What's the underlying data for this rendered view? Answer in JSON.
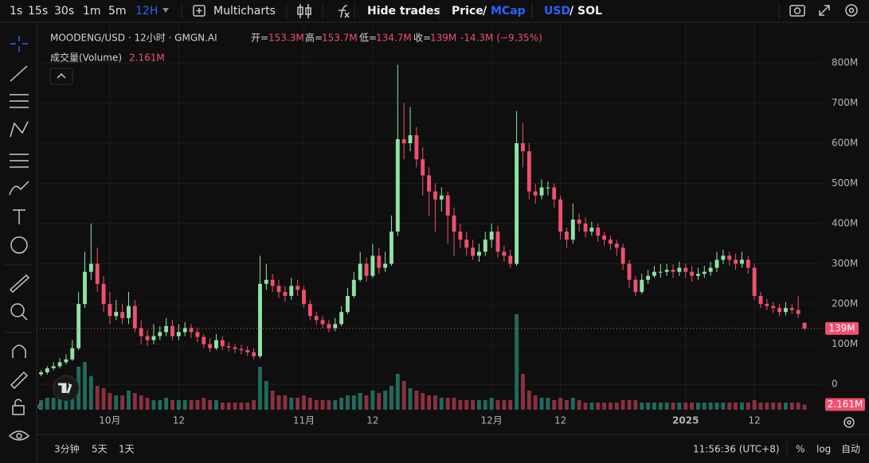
{
  "toolbar": {
    "intervals": [
      "1s",
      "15s",
      "30s",
      "1m",
      "5m",
      "12H"
    ],
    "multicharts": "Multicharts",
    "hide_trades": "Hide trades",
    "price": "Price",
    "slash_1": "/",
    "mcap": "MCap",
    "usd": "USD",
    "slash_2": "/",
    "sol": "SOL"
  },
  "chart_data": {
    "type": "candlestick",
    "title": "MOODENG/USD · 12小时 · GMGN.AI",
    "ohlc_legend": [
      {
        "label": "开=",
        "value": "153.3M"
      },
      {
        "label": "高=",
        "value": "153.7M"
      },
      {
        "label": "低=",
        "value": "134.7M"
      },
      {
        "label": "收=",
        "value": "139M"
      }
    ],
    "change": "-14.3M (−9.35%)",
    "volume_title": "成交量(Volume)",
    "volume_value": "2.161M",
    "last_price_label": "139M",
    "last_volume_label": "2.161M",
    "up_color": "#8ee3a6",
    "down_color": "#f0506e",
    "volume_up_color": "#1f6b5c",
    "volume_down_color": "#8b3040",
    "open": [
      25,
      30,
      40,
      45,
      55,
      62,
      90,
      200,
      280,
      300,
      250,
      200,
      170,
      180,
      165,
      195,
      140,
      120,
      110,
      120,
      130,
      145,
      120,
      130,
      140,
      130,
      118,
      100,
      90,
      110,
      95,
      92,
      88,
      85,
      80,
      70,
      250,
      260,
      245,
      230,
      220,
      245,
      235,
      200,
      170,
      160,
      150,
      140,
      150,
      180,
      220,
      260,
      300,
      270,
      320,
      290,
      300,
      380,
      610,
      600,
      620,
      560,
      520,
      480,
      460,
      470,
      420,
      380,
      360,
      340,
      320,
      330,
      360,
      380,
      330,
      320,
      300,
      600,
      580,
      480,
      470,
      490,
      490,
      460,
      380,
      360,
      410,
      400,
      380,
      390,
      370,
      360,
      350,
      340,
      300,
      260,
      230,
      260,
      270,
      280,
      280,
      285,
      280,
      290,
      280,
      270,
      275,
      280,
      290,
      310,
      320,
      310,
      300,
      310,
      290,
      220,
      200,
      195,
      190,
      180,
      190,
      185,
      153.3
    ],
    "high": [
      35,
      45,
      55,
      65,
      75,
      110,
      230,
      330,
      400,
      340,
      270,
      230,
      210,
      200,
      230,
      210,
      160,
      135,
      150,
      145,
      165,
      160,
      150,
      155,
      150,
      140,
      125,
      115,
      125,
      120,
      105,
      100,
      98,
      95,
      90,
      320,
      300,
      275,
      260,
      245,
      265,
      260,
      245,
      210,
      180,
      170,
      160,
      165,
      195,
      240,
      280,
      330,
      315,
      350,
      340,
      330,
      420,
      795,
      700,
      690,
      640,
      590,
      540,
      500,
      490,
      480,
      440,
      400,
      380,
      360,
      350,
      380,
      400,
      395,
      345,
      335,
      680,
      650,
      600,
      500,
      510,
      505,
      500,
      470,
      390,
      450,
      425,
      415,
      405,
      400,
      380,
      370,
      360,
      350,
      310,
      270,
      275,
      285,
      295,
      300,
      300,
      298,
      305,
      300,
      295,
      290,
      295,
      305,
      330,
      335,
      330,
      325,
      330,
      320,
      300,
      230,
      212,
      205,
      200,
      205,
      200,
      220,
      153.7
    ],
    "low": [
      20,
      25,
      35,
      40,
      50,
      58,
      85,
      190,
      260,
      230,
      180,
      150,
      160,
      150,
      150,
      130,
      100,
      95,
      100,
      110,
      120,
      110,
      110,
      120,
      115,
      105,
      90,
      80,
      85,
      85,
      82,
      78,
      75,
      70,
      62,
      65,
      235,
      230,
      215,
      205,
      210,
      220,
      190,
      160,
      148,
      140,
      130,
      132,
      145,
      175,
      215,
      255,
      255,
      265,
      275,
      280,
      295,
      370,
      560,
      580,
      540,
      470,
      420,
      380,
      430,
      350,
      320,
      340,
      320,
      310,
      305,
      320,
      340,
      315,
      305,
      290,
      295,
      540,
      460,
      450,
      460,
      470,
      440,
      360,
      340,
      350,
      380,
      365,
      370,
      355,
      345,
      335,
      320,
      285,
      240,
      220,
      225,
      250,
      265,
      265,
      270,
      265,
      270,
      265,
      255,
      260,
      265,
      270,
      280,
      300,
      295,
      285,
      290,
      275,
      210,
      190,
      185,
      178,
      170,
      172,
      175,
      165,
      134.7
    ],
    "close": [
      30,
      40,
      45,
      55,
      62,
      90,
      200,
      280,
      300,
      250,
      200,
      170,
      180,
      165,
      195,
      140,
      120,
      110,
      120,
      130,
      145,
      120,
      130,
      140,
      130,
      118,
      100,
      90,
      110,
      95,
      92,
      88,
      85,
      80,
      70,
      250,
      260,
      245,
      230,
      220,
      245,
      235,
      200,
      170,
      160,
      150,
      140,
      150,
      180,
      220,
      260,
      300,
      270,
      320,
      290,
      300,
      380,
      610,
      600,
      620,
      560,
      520,
      480,
      460,
      470,
      420,
      380,
      360,
      340,
      320,
      330,
      360,
      380,
      330,
      320,
      300,
      600,
      580,
      480,
      470,
      490,
      490,
      460,
      380,
      360,
      410,
      400,
      380,
      390,
      370,
      360,
      350,
      340,
      300,
      260,
      230,
      260,
      270,
      280,
      280,
      285,
      280,
      290,
      280,
      270,
      275,
      280,
      290,
      310,
      320,
      310,
      300,
      310,
      290,
      220,
      200,
      195,
      190,
      180,
      190,
      185,
      175,
      139
    ],
    "volume": [
      4,
      5,
      5,
      6,
      7,
      12,
      18,
      20,
      14,
      10,
      9,
      7,
      6,
      6,
      8,
      7,
      6,
      5,
      4,
      4,
      5,
      4,
      4,
      4,
      4,
      4,
      5,
      4,
      4,
      3,
      3,
      3,
      3,
      3,
      4,
      18,
      12,
      8,
      6,
      6,
      5,
      5,
      6,
      5,
      4,
      4,
      4,
      4,
      5,
      6,
      6,
      7,
      6,
      8,
      7,
      8,
      10,
      15,
      12,
      9,
      8,
      7,
      6,
      6,
      5,
      5,
      5,
      4,
      4,
      4,
      4,
      4,
      5,
      4,
      4,
      4,
      40,
      15,
      8,
      6,
      5,
      5,
      4,
      5,
      4,
      5,
      4,
      3,
      3,
      3,
      3,
      3,
      3,
      4,
      4,
      4,
      3,
      3,
      3,
      3,
      3,
      3,
      3,
      3,
      3,
      3,
      3,
      3,
      3,
      3,
      3,
      3,
      3,
      3,
      4,
      3,
      3,
      3,
      3,
      3,
      3,
      3,
      2.161
    ],
    "xlim": [
      -0.7,
      124.8
    ],
    "xticks": [
      {
        "value": 11,
        "label": "10月"
      },
      {
        "value": 22,
        "label": "12"
      },
      {
        "value": 42,
        "label": "11月"
      },
      {
        "value": 53,
        "label": "12"
      },
      {
        "value": 72,
        "label": "12月"
      },
      {
        "value": 83,
        "label": "12"
      },
      {
        "value": 103,
        "label": "2025"
      },
      {
        "value": 114,
        "label": "12"
      }
    ],
    "ylim": [
      -73,
      897
    ],
    "yticks": [
      0,
      {
        "value": 100,
        "label": "100M"
      },
      {
        "value": 200,
        "label": "200M"
      },
      {
        "value": 300,
        "label": "300M"
      },
      {
        "value": 400,
        "label": "400M"
      },
      {
        "value": 500,
        "label": "500M"
      },
      {
        "value": 600,
        "label": "600M"
      },
      {
        "value": 700,
        "label": "700M"
      },
      {
        "value": 800,
        "label": "800M"
      }
    ],
    "grid": true
  },
  "bottom_bar": {
    "ranges": [
      "3分钟",
      "5天",
      "1天"
    ],
    "clock": "11:56:36 (UTC+8)",
    "percent": "%",
    "log": "log",
    "auto": "自动"
  }
}
